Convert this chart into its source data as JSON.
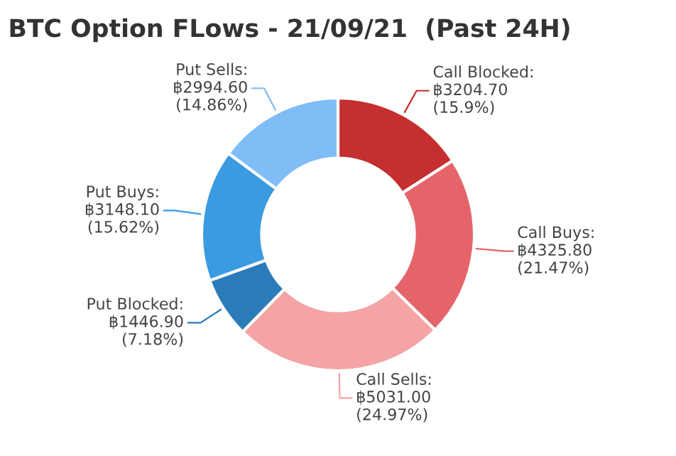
{
  "chart_data": {
    "type": "donut",
    "title": "BTC Option FLows - 21/09/21  (Past 24H)",
    "categories": [
      "Call Blocked",
      "Call Buys",
      "Call Sells",
      "Put Blocked",
      "Put Buys",
      "Put Sells"
    ],
    "values": [
      3204.7,
      4325.8,
      5031.0,
      1446.9,
      3148.1,
      2994.6
    ],
    "value_labels": [
      ":\n฿3204.70\n(15.9%)",
      ":\n฿4325.80\n(21.47%)",
      ":\n฿5031.00\n(24.97%)",
      ":\n฿1446.90\n(7.18%)",
      ":\n฿3148.10\n(15.62%)",
      ":\n฿2994.60\n(14.86%)"
    ],
    "colors": [
      "#c62f2f",
      "#e5646a",
      "#f4a4a4",
      "#2b7bb9",
      "#3a9be0",
      "#80bdf6"
    ],
    "legend": false
  }
}
